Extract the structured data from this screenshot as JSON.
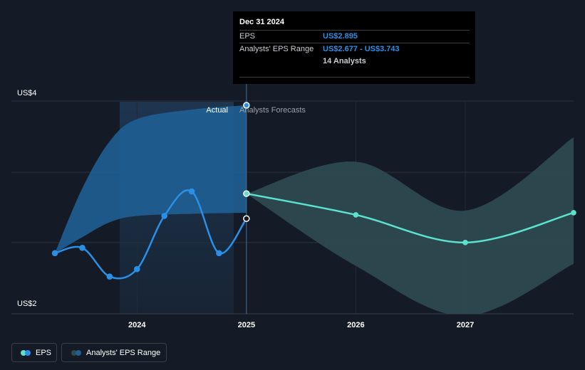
{
  "tooltip": {
    "date": "Dec 31 2024",
    "eps_label": "EPS",
    "eps_value": "US$2.895",
    "range_label": "Analysts' EPS Range",
    "range_value": "US$2.677 - US$3.743",
    "analysts": "14 Analysts"
  },
  "labels": {
    "actual": "Actual",
    "forecast": "Analysts Forecasts"
  },
  "legend": {
    "eps": "EPS",
    "range": "Analysts' EPS Range"
  },
  "colors": {
    "actual_line": "#2b8fe6",
    "forecast_line": "#5ce1cf",
    "actual_band": "#1f5f94",
    "forecast_band": "#2c4a4f",
    "background": "#151b26"
  },
  "chart_data": {
    "type": "line",
    "y_unit": "US$",
    "ylim": [
      2,
      4
    ],
    "y_ticks": [
      {
        "value": 4,
        "label": "US$4"
      },
      {
        "value": 2,
        "label": "US$2"
      }
    ],
    "x_ticks": [
      {
        "value": 2024.0,
        "label": "2024"
      },
      {
        "value": 2025.0,
        "label": "2025"
      },
      {
        "value": 2026.0,
        "label": "2026"
      },
      {
        "value": 2027.0,
        "label": "2027"
      }
    ],
    "xlim": [
      2022.8,
      2027.99
    ],
    "series": [
      {
        "name": "EPS",
        "points": [
          [
            2023.25,
            2.57
          ],
          [
            2023.5,
            2.62
          ],
          [
            2023.75,
            2.35
          ],
          [
            2024.0,
            2.42
          ],
          [
            2024.25,
            2.92
          ],
          [
            2024.5,
            3.15
          ],
          [
            2024.75,
            2.57
          ],
          [
            2025.0,
            2.895
          ]
        ]
      },
      {
        "name": "EPS Forecast",
        "points": [
          [
            2025.0,
            3.13
          ],
          [
            2026.0,
            2.93
          ],
          [
            2027.0,
            2.67
          ],
          [
            2027.99,
            2.95
          ]
        ]
      }
    ],
    "actual_range": {
      "x": [
        2023.25,
        2023.5,
        2023.75,
        2024.0,
        2024.5,
        2025.0
      ],
      "upper": [
        2.57,
        3.18,
        3.62,
        3.83,
        3.92,
        3.96
      ],
      "lower": [
        2.57,
        2.72,
        2.86,
        2.92,
        2.94,
        2.95
      ]
    },
    "forecast_range": {
      "x": [
        2025.0,
        2026.0,
        2027.0,
        2027.99
      ],
      "upper": [
        3.13,
        3.43,
        2.97,
        3.66
      ],
      "lower": [
        3.13,
        2.45,
        1.98,
        2.47
      ]
    },
    "divider_x": 2025.0
  }
}
